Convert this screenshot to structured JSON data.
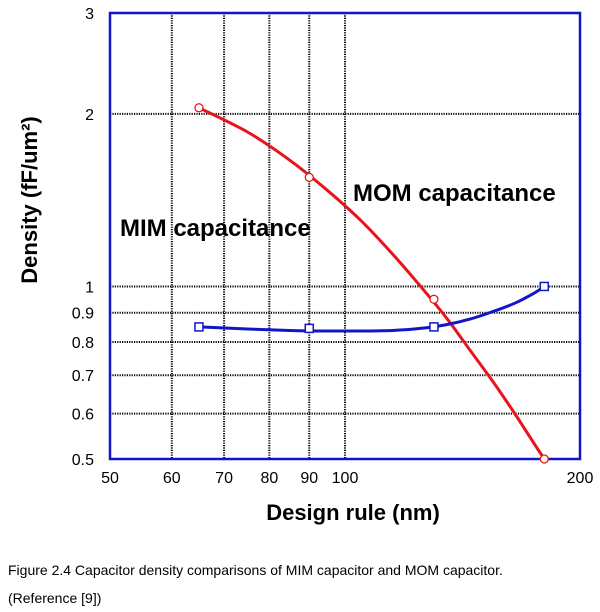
{
  "chart_data": {
    "type": "line",
    "xscale": "log",
    "yscale": "log",
    "xlim": [
      50,
      200
    ],
    "ylim": [
      0.5,
      3
    ],
    "xlabel": "Design rule (nm)",
    "ylabel": "Density (fF/um²)",
    "x_ticks": [
      50,
      60,
      70,
      80,
      90,
      100,
      200
    ],
    "x_tick_labels": [
      "50",
      "60",
      "70",
      "80",
      "90",
      "100",
      "200"
    ],
    "y_ticks": [
      0.5,
      0.6,
      0.7,
      0.8,
      0.9,
      1,
      2,
      3
    ],
    "y_tick_labels": [
      "0.5",
      "0.6",
      "0.7",
      "0.8",
      "0.9",
      "1",
      "2",
      "3"
    ],
    "grid": true,
    "series": [
      {
        "name": "MOM capacitance",
        "label": "MOM capacitance",
        "color": "#e8141b",
        "marker": "circle",
        "x": [
          65,
          90,
          130,
          180
        ],
        "y": [
          2.05,
          1.55,
          0.95,
          0.5
        ],
        "curve_x": [
          65,
          75,
          85,
          95,
          105,
          115,
          125,
          135,
          145,
          155,
          165,
          175,
          180
        ],
        "curve_y": [
          2.05,
          1.86,
          1.66,
          1.47,
          1.3,
          1.14,
          1.0,
          0.88,
          0.77,
          0.68,
          0.6,
          0.53,
          0.5
        ]
      },
      {
        "name": "MIM capacitance",
        "label": "MIM capacitance",
        "color": "#1216c8",
        "marker": "square",
        "x": [
          65,
          90,
          130,
          180
        ],
        "y": [
          0.85,
          0.845,
          0.85,
          1.0
        ],
        "curve_x": [
          65,
          75,
          85,
          95,
          105,
          115,
          125,
          135,
          145,
          155,
          165,
          175,
          180
        ],
        "curve_y": [
          0.85,
          0.843,
          0.838,
          0.836,
          0.836,
          0.838,
          0.845,
          0.858,
          0.878,
          0.905,
          0.935,
          0.975,
          1.0
        ]
      }
    ],
    "frame_color": "#1216c8"
  },
  "caption": {
    "line1": "Figure 2.4 Capacitor density comparisons of MIM capacitor and MOM capacitor.",
    "line2": "(Reference [9])"
  }
}
